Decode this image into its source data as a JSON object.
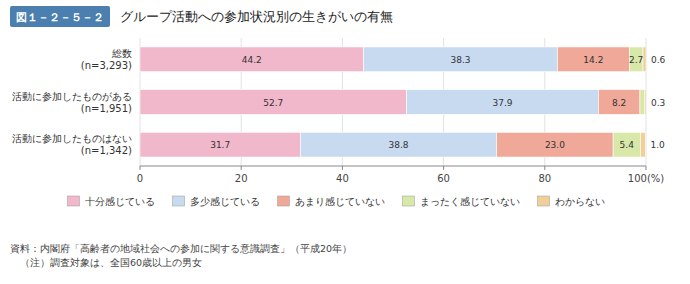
{
  "chart_data": {
    "type": "bar",
    "orientation": "horizontal",
    "stacked": true,
    "title": "グループ活動への参加状況別の生きがいの有無",
    "annotations": [
      "図１－２－５－２",
      "資料：内閣府「高齢者の地域社会への参加に関する意識調査」（平成20年）",
      "　（注）調査対象は、全国60歳以上の男女"
    ],
    "categories": [
      "総数\n(n=3,293)",
      "活動に参加したものがある\n(n=1,951)",
      "活動に参加したものはない\n(n=1,342)"
    ],
    "series": [
      {
        "name": "十分感じている",
        "color": "#f0b8ca",
        "values": [
          44.2,
          52.7,
          31.7
        ]
      },
      {
        "name": "多少感じている",
        "color": "#c8daf0",
        "values": [
          38.3,
          37.9,
          38.8
        ]
      },
      {
        "name": "あまり感じていない",
        "color": "#f0a898",
        "values": [
          14.2,
          8.2,
          23.0
        ],
        "value_labels": [
          "14.2",
          "8.2",
          "23.0"
        ]
      },
      {
        "name": "まったく感じていない",
        "color": "#d8e8a8",
        "values": [
          2.7,
          0.9,
          5.4
        ]
      },
      {
        "name": "わからない",
        "color": "#f0d098",
        "values": [
          0.6,
          0.3,
          1.0
        ],
        "value_labels": [
          "0.6",
          "0.3",
          "1.0"
        ]
      }
    ],
    "xlim": [
      0,
      100
    ],
    "xticks": [
      0,
      20,
      40,
      60,
      80,
      {
        "value": 100,
        "label": "100(%)"
      }
    ],
    "grid": true,
    "data_labels": true,
    "legend": "bottom"
  }
}
